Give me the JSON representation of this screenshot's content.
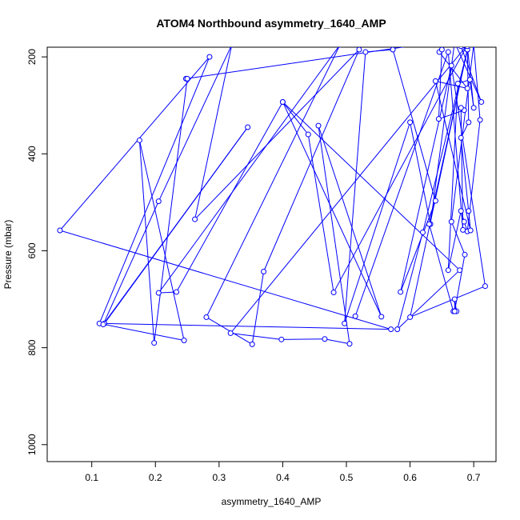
{
  "chart_data": {
    "type": "line",
    "title": "ATOM4 Northbound asymmetry_1640_AMP",
    "xlabel": "asymmetry_1640_AMP",
    "ylabel": "Pressure (mbar)",
    "xlim": [
      0.03,
      0.735
    ],
    "ylim": [
      1035,
      180
    ],
    "y_reversed": true,
    "x_ticks": [
      0.1,
      0.2,
      0.3,
      0.4,
      0.5,
      0.6,
      0.7
    ],
    "x_tick_labels": [
      "0.1",
      "0.2",
      "0.3",
      "0.4",
      "0.5",
      "0.6",
      "0.7"
    ],
    "y_ticks": [
      200,
      400,
      600,
      800,
      1000
    ],
    "y_tick_labels": [
      "200",
      "400",
      "600",
      "800",
      "1000"
    ],
    "grid": false,
    "colors": {
      "series": "#0000ff",
      "axis": "#000000",
      "background": "#ffffff"
    },
    "markers": "open-circle",
    "series": [
      {
        "values": [
          [
            0.64,
            170
          ],
          [
            0.248,
            245
          ],
          [
            0.25,
            245
          ],
          [
            0.198,
            790
          ],
          [
            0.175,
            372
          ],
          [
            0.245,
            785
          ],
          [
            0.112,
            750
          ],
          [
            0.285,
            200
          ],
          [
            0.05,
            558
          ],
          [
            0.57,
            762
          ],
          [
            0.12,
            750
          ],
          [
            0.345,
            345
          ],
          [
            0.118,
            752
          ],
          [
            0.205,
            498
          ],
          [
            0.32,
            175
          ],
          [
            0.262,
            535
          ],
          [
            0.52,
            185
          ],
          [
            0.37,
            643
          ],
          [
            0.352,
            793
          ],
          [
            0.28,
            737
          ],
          [
            0.49,
            175
          ],
          [
            0.205,
            687
          ],
          [
            0.233,
            685
          ],
          [
            0.4,
            293
          ],
          [
            0.44,
            360
          ],
          [
            0.48,
            686
          ],
          [
            0.69,
            175
          ],
          [
            0.318,
            770
          ],
          [
            0.398,
            783
          ],
          [
            0.466,
            782
          ],
          [
            0.505,
            792
          ],
          [
            0.456,
            342
          ],
          [
            0.555,
            736
          ],
          [
            0.4,
            293
          ],
          [
            0.678,
            640
          ],
          [
            0.58,
            762
          ],
          [
            0.62,
            562
          ],
          [
            0.69,
            185
          ],
          [
            0.6,
            737
          ],
          [
            0.718,
            673
          ],
          [
            0.665,
            218
          ],
          [
            0.585,
            685
          ],
          [
            0.64,
            497
          ],
          [
            0.573,
            185
          ],
          [
            0.53,
            190
          ],
          [
            0.497,
            750
          ],
          [
            0.6,
            335
          ],
          [
            0.632,
            545
          ],
          [
            0.67,
            170
          ],
          [
            0.712,
            293
          ],
          [
            0.68,
            178
          ],
          [
            0.69,
            185
          ],
          [
            0.63,
            545
          ],
          [
            0.668,
            725
          ],
          [
            0.673,
            725
          ],
          [
            0.67,
            700
          ],
          [
            0.67,
            725
          ],
          [
            0.686,
            608
          ],
          [
            0.665,
            540
          ],
          [
            0.7,
            175
          ],
          [
            0.71,
            330
          ],
          [
            0.69,
            560
          ],
          [
            0.685,
            540
          ],
          [
            0.68,
            518
          ],
          [
            0.66,
            640
          ],
          [
            0.675,
            255
          ],
          [
            0.694,
            247
          ],
          [
            0.7,
            305
          ],
          [
            0.69,
            178
          ],
          [
            0.692,
            335
          ],
          [
            0.68,
            367
          ],
          [
            0.692,
            518
          ],
          [
            0.695,
            558
          ],
          [
            0.64,
            250
          ],
          [
            0.69,
            265
          ],
          [
            0.646,
            190
          ],
          [
            0.65,
            185
          ],
          [
            0.645,
            328
          ],
          [
            0.685,
            310
          ],
          [
            0.68,
            305
          ],
          [
            0.683,
            557
          ],
          [
            0.66,
            190
          ],
          [
            0.514,
            735
          ]
        ]
      }
    ]
  }
}
